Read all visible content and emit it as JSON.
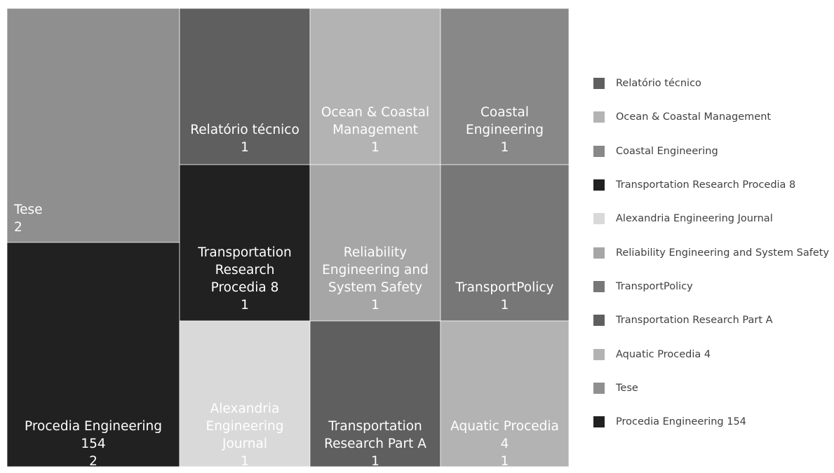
{
  "chart_data": {
    "type": "treemap",
    "items": [
      {
        "name": "Relatório técnico",
        "label_lines": [
          "Relatório técnico"
        ],
        "value": 1,
        "color": "#5f5f5f",
        "text_color": "#ffffff"
      },
      {
        "name": "Ocean & Coastal Management",
        "label_lines": [
          "Ocean & Coastal",
          "Management"
        ],
        "value": 1,
        "color": "#b3b3b3",
        "text_color": "#ffffff"
      },
      {
        "name": "Coastal Engineering",
        "label_lines": [
          "Coastal",
          "Engineering"
        ],
        "value": 1,
        "color": "#888888",
        "text_color": "#ffffff"
      },
      {
        "name": "Transportation Research Procedia 8",
        "label_lines": [
          "Transportation",
          "Research",
          "Procedia 8"
        ],
        "value": 1,
        "color": "#212121",
        "text_color": "#ffffff"
      },
      {
        "name": "Alexandria Engineering Journal",
        "label_lines": [
          "Alexandria",
          "Engineering",
          "Journal"
        ],
        "value": 1,
        "color": "#d9d9d9",
        "text_color": "#ffffff"
      },
      {
        "name": "Reliability Engineering and System Safety",
        "label_lines": [
          "Reliability",
          "Engineering and",
          "System Safety"
        ],
        "value": 1,
        "color": "#a6a6a6",
        "text_color": "#ffffff"
      },
      {
        "name": "TransportPolicy",
        "label_lines": [
          "TransportPolicy"
        ],
        "value": 1,
        "color": "#777777",
        "text_color": "#ffffff"
      },
      {
        "name": "Transportation Research Part A",
        "label_lines": [
          "Transportation",
          "Research Part A"
        ],
        "value": 1,
        "color": "#5f5f5f",
        "text_color": "#ffffff"
      },
      {
        "name": "Aquatic Procedia 4",
        "label_lines": [
          "Aquatic Procedia",
          "4"
        ],
        "value": 1,
        "color": "#b3b3b3",
        "text_color": "#ffffff"
      },
      {
        "name": "Tese",
        "label_lines": [
          "Tese"
        ],
        "value": 2,
        "color": "#8f8f8f",
        "text_color": "#ffffff"
      },
      {
        "name": "Procedia Engineering 154",
        "label_lines": [
          "Procedia Engineering",
          "154"
        ],
        "value": 2,
        "color": "#212121",
        "text_color": "#ffffff"
      }
    ],
    "legend_position": "right"
  }
}
